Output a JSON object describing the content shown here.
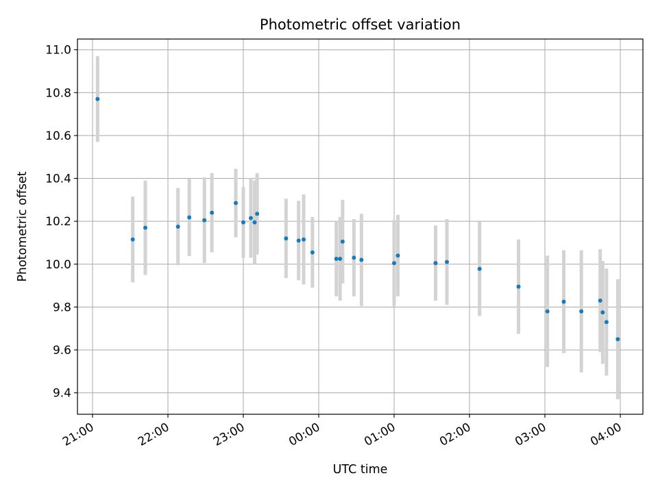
{
  "chart_data": {
    "type": "scatter",
    "title": "Photometric offset variation",
    "xlabel": "UTC time",
    "ylabel": "Photometric offset",
    "grid": true,
    "legend": "none",
    "error_bars": true,
    "colors": {
      "points": "#1f77b4",
      "error_bars": "#d3d3d3",
      "grid": "#b0b0b0"
    },
    "xlim": [
      "20:48",
      "04:18"
    ],
    "ylim": [
      9.3,
      11.05
    ],
    "xticks": [
      "21:00",
      "22:00",
      "23:00",
      "00:00",
      "01:00",
      "02:00",
      "03:00",
      "04:00"
    ],
    "yticks": [
      "9.4",
      "9.6",
      "9.8",
      "10.0",
      "10.2",
      "10.4",
      "10.6",
      "10.8",
      "11.0"
    ],
    "points": [
      {
        "x": "21:04",
        "y": 10.77,
        "err": 0.2
      },
      {
        "x": "21:32",
        "y": 10.115,
        "err": 0.2
      },
      {
        "x": "21:42",
        "y": 10.17,
        "err": 0.22
      },
      {
        "x": "22:08",
        "y": 10.175,
        "err": 0.18
      },
      {
        "x": "22:17",
        "y": 10.218,
        "err": 0.18
      },
      {
        "x": "22:29",
        "y": 10.205,
        "err": 0.2
      },
      {
        "x": "22:35",
        "y": 10.24,
        "err": 0.185
      },
      {
        "x": "22:54",
        "y": 10.285,
        "err": 0.16
      },
      {
        "x": "23:00",
        "y": 10.195,
        "err": 0.165
      },
      {
        "x": "23:06",
        "y": 10.215,
        "err": 0.185
      },
      {
        "x": "23:09",
        "y": 10.195,
        "err": 0.195
      },
      {
        "x": "23:11",
        "y": 10.235,
        "err": 0.19
      },
      {
        "x": "23:34",
        "y": 10.12,
        "err": 0.185
      },
      {
        "x": "23:44",
        "y": 10.11,
        "err": 0.185
      },
      {
        "x": "23:48",
        "y": 10.115,
        "err": 0.21
      },
      {
        "x": "23:55",
        "y": 10.055,
        "err": 0.165
      },
      {
        "x": "00:14",
        "y": 10.025,
        "err": 0.175
      },
      {
        "x": "00:17",
        "y": 10.025,
        "err": 0.195
      },
      {
        "x": "00:19",
        "y": 10.105,
        "err": 0.195
      },
      {
        "x": "00:28",
        "y": 10.03,
        "err": 0.18
      },
      {
        "x": "00:34",
        "y": 10.02,
        "err": 0.215
      },
      {
        "x": "01:00",
        "y": 10.005,
        "err": 0.2
      },
      {
        "x": "01:03",
        "y": 10.04,
        "err": 0.19
      },
      {
        "x": "01:33",
        "y": 10.005,
        "err": 0.175
      },
      {
        "x": "01:42",
        "y": 10.01,
        "err": 0.2
      },
      {
        "x": "02:08",
        "y": 9.978,
        "err": 0.22
      },
      {
        "x": "02:39",
        "y": 9.895,
        "err": 0.22
      },
      {
        "x": "03:02",
        "y": 9.78,
        "err": 0.26
      },
      {
        "x": "03:15",
        "y": 9.825,
        "err": 0.24
      },
      {
        "x": "03:29",
        "y": 9.78,
        "err": 0.285
      },
      {
        "x": "03:44",
        "y": 9.83,
        "err": 0.24
      },
      {
        "x": "03:46",
        "y": 9.775,
        "err": 0.24
      },
      {
        "x": "03:49",
        "y": 9.73,
        "err": 0.25
      },
      {
        "x": "03:58",
        "y": 9.65,
        "err": 0.28
      }
    ]
  }
}
